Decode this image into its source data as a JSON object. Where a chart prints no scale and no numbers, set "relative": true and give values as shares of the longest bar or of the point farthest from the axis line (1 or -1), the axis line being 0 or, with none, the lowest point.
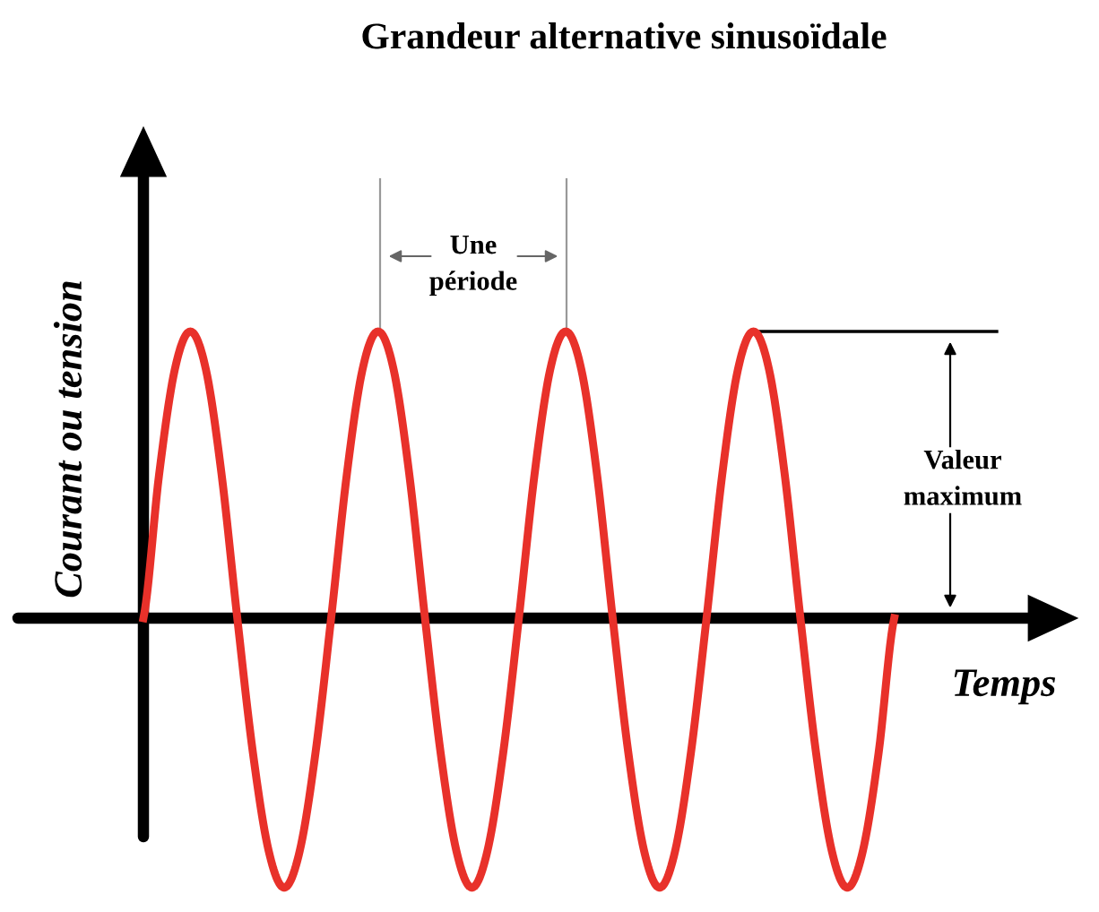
{
  "chart_data": {
    "type": "line",
    "relative": true,
    "title": "Grandeur alternative sinusoïdale",
    "xlabel": "Temps",
    "ylabel": "Courant ou tension",
    "categories": [
      null,
      null,
      null,
      null,
      null,
      null,
      null,
      null,
      null,
      null,
      null,
      null,
      null,
      null,
      null,
      null,
      null,
      null,
      null,
      null,
      null,
      null,
      null,
      null,
      null,
      null,
      null,
      null,
      null,
      null,
      null,
      null,
      null,
      null,
      null,
      null,
      null,
      null,
      null,
      null,
      null,
      null,
      null,
      null,
      null,
      null,
      null,
      null,
      null
    ],
    "series": [
      {
        "color": "#e8312a",
        "values": [
          0,
          0.5,
          0.866,
          1,
          0.866,
          0.5,
          0,
          -0.47,
          -0.81,
          -0.94,
          -0.81,
          -0.47,
          0,
          0.5,
          0.866,
          1,
          0.866,
          0.5,
          0,
          -0.47,
          -0.81,
          -0.94,
          -0.81,
          -0.47,
          0,
          0.5,
          0.866,
          1,
          0.866,
          0.5,
          0,
          -0.47,
          -0.81,
          -0.94,
          -0.81,
          -0.47,
          0,
          0.5,
          0.866,
          1,
          0.866,
          0.5,
          0,
          -0.47,
          -0.81,
          -0.94,
          -0.81,
          -0.47,
          0
        ]
      }
    ],
    "annotations": [
      "Une\npériode",
      "Valeur\nmaximum"
    ]
  }
}
